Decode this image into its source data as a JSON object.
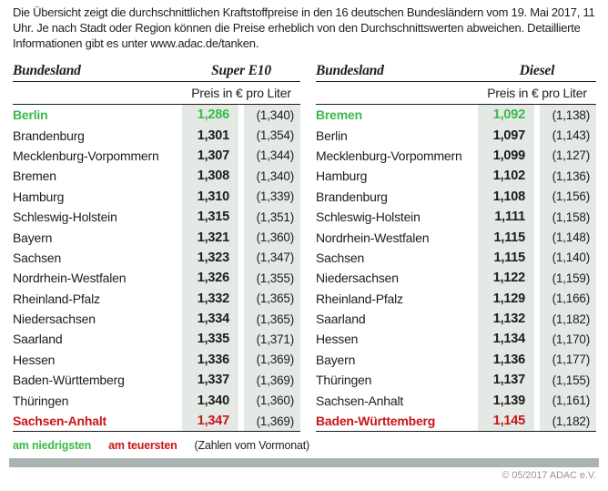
{
  "intro": "Die Übersicht zeigt die durchschnittlichen Kraftstoffpreise in den 16 deutschen Bundesländern vom 19. Mai 2017, 11 Uhr. Je nach Stadt oder Region können die Preise erheblich von den Durchschnittswerten abweichen. Detaillierte Informationen gibt es unter www.adac.de/tanken.",
  "colors": {
    "lowest_green": "#3abb48",
    "highest_red": "#cb1517",
    "strip_bg": "#e4e9e6",
    "divider_bar": "#a9b4b0"
  },
  "tables": [
    {
      "state_header": "Bundesland",
      "fuel_header": "Super E10",
      "price_unit_header": "Preis in € pro Liter",
      "rows": [
        {
          "state": "Berlin",
          "price": "1,286",
          "prev": "(1,340)",
          "highlight": "lowest"
        },
        {
          "state": "Brandenburg",
          "price": "1,301",
          "prev": "(1,354)"
        },
        {
          "state": "Mecklenburg-Vorpommern",
          "price": "1,307",
          "prev": "(1,344)"
        },
        {
          "state": "Bremen",
          "price": "1,308",
          "prev": "(1,340)"
        },
        {
          "state": "Hamburg",
          "price": "1,310",
          "prev": "(1,339)"
        },
        {
          "state": "Schleswig-Holstein",
          "price": "1,315",
          "prev": "(1,351)"
        },
        {
          "state": "Bayern",
          "price": "1,321",
          "prev": "(1,360)"
        },
        {
          "state": "Sachsen",
          "price": "1,323",
          "prev": "(1,347)"
        },
        {
          "state": "Nordrhein-Westfalen",
          "price": "1,326",
          "prev": "(1,355)"
        },
        {
          "state": "Rheinland-Pfalz",
          "price": "1,332",
          "prev": "(1,365)"
        },
        {
          "state": "Niedersachsen",
          "price": "1,334",
          "prev": "(1,365)"
        },
        {
          "state": "Saarland",
          "price": "1,335",
          "prev": "(1,371)"
        },
        {
          "state": "Hessen",
          "price": "1,336",
          "prev": "(1,369)"
        },
        {
          "state": "Baden-Württemberg",
          "price": "1,337",
          "prev": "(1,369)"
        },
        {
          "state": "Thüringen",
          "price": "1,340",
          "prev": "(1,360)"
        },
        {
          "state": "Sachsen-Anhalt",
          "price": "1,347",
          "prev": "(1,369)",
          "highlight": "highest"
        }
      ]
    },
    {
      "state_header": "Bundesland",
      "fuel_header": "Diesel",
      "price_unit_header": "Preis in € pro Liter",
      "rows": [
        {
          "state": "Bremen",
          "price": "1,092",
          "prev": "(1,138)",
          "highlight": "lowest"
        },
        {
          "state": "Berlin",
          "price": "1,097",
          "prev": "(1,143)"
        },
        {
          "state": "Mecklenburg-Vorpommern",
          "price": "1,099",
          "prev": "(1,127)"
        },
        {
          "state": "Hamburg",
          "price": "1,102",
          "prev": "(1,136)"
        },
        {
          "state": "Brandenburg",
          "price": "1,108",
          "prev": "(1,156)"
        },
        {
          "state": "Schleswig-Holstein",
          "price": "1,111",
          "prev": "(1,158)"
        },
        {
          "state": "Nordrhein-Westfalen",
          "price": "1,115",
          "prev": "(1,148)"
        },
        {
          "state": "Sachsen",
          "price": "1,115",
          "prev": "(1,140)"
        },
        {
          "state": "Niedersachsen",
          "price": "1,122",
          "prev": "(1,159)"
        },
        {
          "state": "Rheinland-Pfalz",
          "price": "1,129",
          "prev": "(1,166)"
        },
        {
          "state": "Saarland",
          "price": "1,132",
          "prev": "(1,182)"
        },
        {
          "state": "Hessen",
          "price": "1,134",
          "prev": "(1,170)"
        },
        {
          "state": "Bayern",
          "price": "1,136",
          "prev": "(1,177)"
        },
        {
          "state": "Thüringen",
          "price": "1,137",
          "prev": "(1,155)"
        },
        {
          "state": "Sachsen-Anhalt",
          "price": "1,139",
          "prev": "(1,161)"
        },
        {
          "state": "Baden-Württemberg",
          "price": "1,145",
          "prev": "(1,182)",
          "highlight": "highest"
        }
      ]
    }
  ],
  "legend": {
    "lowest_label": "am niedrigsten",
    "highest_label": "am teuersten",
    "note": "(Zahlen vom Vormonat)"
  },
  "footer": {
    "copyright": "© 05/2017 ADAC e.V."
  },
  "chart_data": [
    {
      "type": "table",
      "title": "Super E10",
      "columns": [
        "Bundesland",
        "Preis in € pro Liter",
        "Vormonat"
      ],
      "rows": [
        [
          "Berlin",
          1.286,
          1.34
        ],
        [
          "Brandenburg",
          1.301,
          1.354
        ],
        [
          "Mecklenburg-Vorpommern",
          1.307,
          1.344
        ],
        [
          "Bremen",
          1.308,
          1.34
        ],
        [
          "Hamburg",
          1.31,
          1.339
        ],
        [
          "Schleswig-Holstein",
          1.315,
          1.351
        ],
        [
          "Bayern",
          1.321,
          1.36
        ],
        [
          "Sachsen",
          1.323,
          1.347
        ],
        [
          "Nordrhein-Westfalen",
          1.326,
          1.355
        ],
        [
          "Rheinland-Pfalz",
          1.332,
          1.365
        ],
        [
          "Niedersachsen",
          1.334,
          1.365
        ],
        [
          "Saarland",
          1.335,
          1.371
        ],
        [
          "Hessen",
          1.336,
          1.369
        ],
        [
          "Baden-Württemberg",
          1.337,
          1.369
        ],
        [
          "Thüringen",
          1.34,
          1.36
        ],
        [
          "Sachsen-Anhalt",
          1.347,
          1.369
        ]
      ],
      "annotations": {
        "lowest": "Berlin",
        "highest": "Sachsen-Anhalt"
      }
    },
    {
      "type": "table",
      "title": "Diesel",
      "columns": [
        "Bundesland",
        "Preis in € pro Liter",
        "Vormonat"
      ],
      "rows": [
        [
          "Bremen",
          1.092,
          1.138
        ],
        [
          "Berlin",
          1.097,
          1.143
        ],
        [
          "Mecklenburg-Vorpommern",
          1.099,
          1.127
        ],
        [
          "Hamburg",
          1.102,
          1.136
        ],
        [
          "Brandenburg",
          1.108,
          1.156
        ],
        [
          "Schleswig-Holstein",
          1.111,
          1.158
        ],
        [
          "Nordrhein-Westfalen",
          1.115,
          1.148
        ],
        [
          "Sachsen",
          1.115,
          1.14
        ],
        [
          "Niedersachsen",
          1.122,
          1.159
        ],
        [
          "Rheinland-Pfalz",
          1.129,
          1.166
        ],
        [
          "Saarland",
          1.132,
          1.182
        ],
        [
          "Hessen",
          1.134,
          1.17
        ],
        [
          "Bayern",
          1.136,
          1.177
        ],
        [
          "Thüringen",
          1.137,
          1.155
        ],
        [
          "Sachsen-Anhalt",
          1.139,
          1.161
        ],
        [
          "Baden-Württemberg",
          1.145,
          1.182
        ]
      ],
      "annotations": {
        "lowest": "Bremen",
        "highest": "Baden-Württemberg"
      }
    }
  ]
}
